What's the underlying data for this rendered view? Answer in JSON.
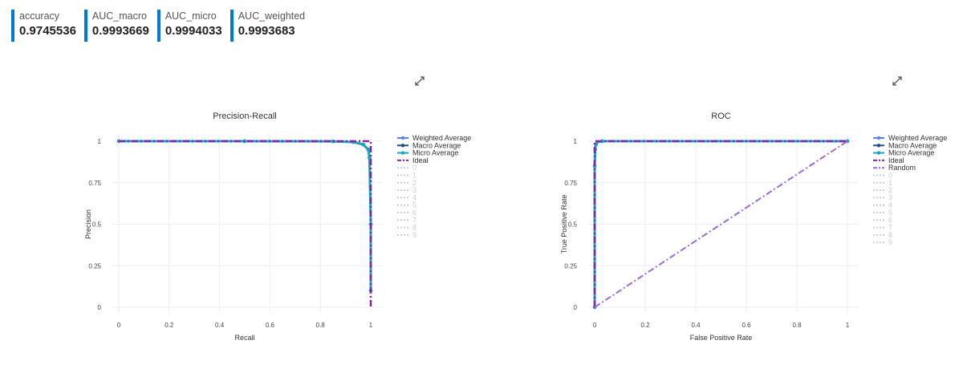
{
  "metrics": [
    {
      "label": "accuracy",
      "value": "0.9745536"
    },
    {
      "label": "AUC_macro",
      "value": "0.9993669"
    },
    {
      "label": "AUC_micro",
      "value": "0.9994033"
    },
    {
      "label": "AUC_weighted",
      "value": "0.9993683"
    }
  ],
  "icons": {
    "expand": "expand-arrows-icon"
  },
  "colors": {
    "accent": "#0078d4",
    "weighted": "#5b7ff0",
    "macro": "#1f4e8c",
    "micro": "#1ba3c0",
    "ideal": "#8b1fa9",
    "random": "#9b6bd0",
    "class_legend": "#cccccc"
  },
  "chart_data": [
    {
      "type": "line",
      "title": "Precision-Recall",
      "xlabel": "Recall",
      "ylabel": "Precision",
      "xlim": [
        0,
        1
      ],
      "ylim": [
        0,
        1
      ],
      "xticks": [
        "0",
        "0.2",
        "0.4",
        "0.6",
        "0.8",
        "1"
      ],
      "yticks": [
        "0",
        "0.25",
        "0.5",
        "0.75",
        "1"
      ],
      "grid": true,
      "legend_position": "right",
      "legend": [
        "Weighted Average",
        "Macro Average",
        "Micro Average",
        "Ideal",
        "0",
        "1",
        "2",
        "3",
        "4",
        "5",
        "6",
        "7",
        "8",
        "9"
      ],
      "series": [
        {
          "name": "Weighted Average",
          "x": [
            0,
            0.5,
            0.85,
            0.93,
            0.97,
            0.99,
            0.995,
            1.0,
            1.0
          ],
          "y": [
            1,
            1,
            0.999,
            0.995,
            0.98,
            0.95,
            0.9,
            0.5,
            0.1
          ]
        },
        {
          "name": "Macro Average",
          "x": [
            0,
            0.5,
            0.85,
            0.93,
            0.97,
            0.99,
            0.995,
            1.0,
            1.0
          ],
          "y": [
            1,
            1,
            0.999,
            0.995,
            0.98,
            0.95,
            0.9,
            0.5,
            0.1
          ]
        },
        {
          "name": "Micro Average",
          "x": [
            0,
            0.5,
            0.85,
            0.93,
            0.97,
            0.99,
            0.995,
            1.0,
            1.0
          ],
          "y": [
            1,
            1,
            0.999,
            0.995,
            0.98,
            0.95,
            0.9,
            0.5,
            0.1
          ]
        },
        {
          "name": "Ideal",
          "x": [
            0,
            1,
            1
          ],
          "y": [
            1,
            1,
            0
          ]
        }
      ]
    },
    {
      "type": "line",
      "title": "ROC",
      "xlabel": "False Positive Rate",
      "ylabel": "True Positive Rate",
      "xlim": [
        0,
        1
      ],
      "ylim": [
        0,
        1
      ],
      "xticks": [
        "0",
        "0.2",
        "0.4",
        "0.6",
        "0.8",
        "1"
      ],
      "yticks": [
        "0",
        "0.25",
        "0.5",
        "0.75",
        "1"
      ],
      "grid": true,
      "legend_position": "right",
      "legend": [
        "Weighted Average",
        "Macro Average",
        "Micro Average",
        "Ideal",
        "Random",
        "0",
        "1",
        "2",
        "3",
        "4",
        "5",
        "6",
        "7",
        "8",
        "9"
      ],
      "series": [
        {
          "name": "Weighted Average",
          "x": [
            0,
            0,
            0.002,
            0.005,
            0.01,
            0.03,
            1
          ],
          "y": [
            0,
            0.85,
            0.95,
            0.98,
            0.995,
            1,
            1
          ]
        },
        {
          "name": "Macro Average",
          "x": [
            0,
            0,
            0.002,
            0.005,
            0.01,
            0.03,
            1
          ],
          "y": [
            0,
            0.85,
            0.95,
            0.98,
            0.995,
            1,
            1
          ]
        },
        {
          "name": "Micro Average",
          "x": [
            0,
            0,
            0.002,
            0.005,
            0.01,
            0.03,
            1
          ],
          "y": [
            0,
            0.85,
            0.95,
            0.98,
            0.995,
            1,
            1
          ]
        },
        {
          "name": "Ideal",
          "x": [
            0,
            0,
            1
          ],
          "y": [
            0,
            1,
            1
          ]
        },
        {
          "name": "Random",
          "x": [
            0,
            1
          ],
          "y": [
            0,
            1
          ]
        }
      ]
    }
  ]
}
